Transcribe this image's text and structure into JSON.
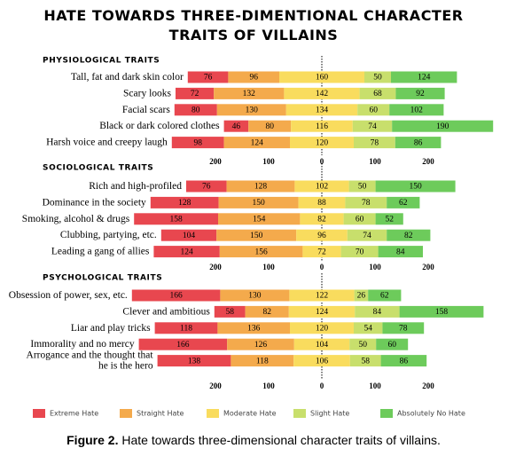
{
  "title": "HATE TOWARDS THREE-DIMENTIONAL CHARACTER TRAITS OF VILLAINS",
  "caption": {
    "label": "Figure 2.",
    "text": "Hate towards three-dimensional character traits of villains."
  },
  "chart_data": [
    {
      "type": "diverging-bar",
      "title": "PHYSIOLOGICAL TRAITS",
      "categories": [
        "Tall, fat and dark skin color",
        "Scary looks",
        "Facial scars",
        "Black or dark colored clothes",
        "Harsh voice and creepy laugh"
      ],
      "series": [
        {
          "name": "Extreme Hate",
          "color": "#e8474f",
          "values": [
            76,
            72,
            80,
            46,
            98
          ]
        },
        {
          "name": "Straight Hate",
          "color": "#f4aa4c",
          "values": [
            96,
            132,
            130,
            80,
            124
          ]
        },
        {
          "name": "Moderate Hate",
          "color": "#f9dc5e",
          "values": [
            160,
            142,
            134,
            116,
            120
          ]
        },
        {
          "name": "Slight Hate",
          "color": "#c8df6c",
          "values": [
            50,
            68,
            60,
            74,
            78
          ]
        },
        {
          "name": "Absolutely No Hate",
          "color": "#6dcb5b",
          "values": [
            124,
            92,
            102,
            190,
            86
          ]
        }
      ],
      "xlim": [
        -360,
        350
      ],
      "xticks": [
        {
          "value": -200,
          "label": "200"
        },
        {
          "value": -100,
          "label": "100"
        },
        0,
        100,
        200
      ]
    },
    {
      "type": "diverging-bar",
      "title": "SOCIOLOGICAL TRAITS",
      "categories": [
        "Rich and high-profiled",
        "Dominance in the society",
        "Smoking, alcohol & drugs",
        "Clubbing, partying, etc.",
        "Leading a gang of allies"
      ],
      "series": [
        {
          "name": "Extreme Hate",
          "color": "#e8474f",
          "values": [
            76,
            128,
            158,
            104,
            124
          ]
        },
        {
          "name": "Straight Hate",
          "color": "#f4aa4c",
          "values": [
            128,
            150,
            154,
            150,
            156
          ]
        },
        {
          "name": "Moderate Hate",
          "color": "#f9dc5e",
          "values": [
            102,
            88,
            82,
            96,
            72
          ]
        },
        {
          "name": "Slight Hate",
          "color": "#c8df6c",
          "values": [
            50,
            78,
            60,
            74,
            70
          ]
        },
        {
          "name": "Absolutely No Hate",
          "color": "#6dcb5b",
          "values": [
            150,
            62,
            52,
            82,
            84
          ]
        }
      ],
      "xlim": [
        -360,
        350
      ],
      "xticks": [
        {
          "value": -200,
          "label": "200"
        },
        {
          "value": -100,
          "label": "100"
        },
        0,
        100,
        200
      ]
    },
    {
      "type": "diverging-bar",
      "title": "PSYCHOLOGICAL TRAITS",
      "categories": [
        "Obsession of power, sex, etc.",
        "Clever and ambitious",
        "Liar and play tricks",
        "Immorality and no mercy",
        "Arrogance and the thought that he is the hero"
      ],
      "series": [
        {
          "name": "Extreme Hate",
          "color": "#e8474f",
          "values": [
            166,
            58,
            118,
            166,
            138
          ]
        },
        {
          "name": "Straight Hate",
          "color": "#f4aa4c",
          "values": [
            130,
            82,
            136,
            126,
            118
          ]
        },
        {
          "name": "Moderate Hate",
          "color": "#f9dc5e",
          "values": [
            122,
            124,
            120,
            104,
            106
          ]
        },
        {
          "name": "Slight Hate",
          "color": "#c8df6c",
          "values": [
            26,
            84,
            54,
            50,
            58
          ]
        },
        {
          "name": "Absolutely No Hate",
          "color": "#6dcb5b",
          "values": [
            62,
            158,
            78,
            60,
            86
          ]
        }
      ],
      "xlim": [
        -360,
        350
      ],
      "xticks": [
        {
          "value": -200,
          "label": "200"
        },
        {
          "value": -100,
          "label": "100"
        },
        0,
        100,
        200
      ]
    }
  ]
}
